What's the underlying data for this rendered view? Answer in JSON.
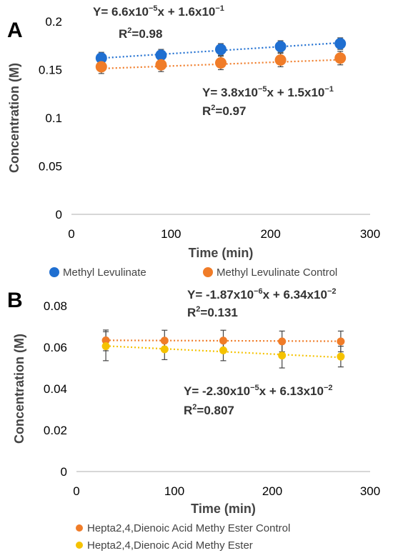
{
  "chart_data": [
    {
      "type": "scatter",
      "panel": "A",
      "xlabel": "Time (min)",
      "ylabel": "Concentration (M)",
      "xlim": [
        0,
        300
      ],
      "ylim": [
        0,
        0.2
      ],
      "x_ticks": [
        "0",
        "100",
        "200",
        "300"
      ],
      "y_ticks": [
        "0",
        "0.05",
        "0.1",
        "0.15",
        "0.2"
      ],
      "grid": false,
      "legend_position": "bottom",
      "series": [
        {
          "name": "Methyl Levulinate",
          "color": "#1f6fd1",
          "x": [
            30,
            90,
            150,
            210,
            270
          ],
          "y": [
            0.162,
            0.165,
            0.171,
            0.174,
            0.177
          ],
          "error": [
            0.006,
            0.006,
            0.006,
            0.006,
            0.006
          ],
          "trendline": {
            "slope": 6.6e-05,
            "intercept": 0.16
          },
          "equation": {
            "prefix": "Y= 6.6x10",
            "exp1": "−5",
            "mid": "x + 1.6x10",
            "exp2": "−1",
            "r2_label": "R",
            "r2_value": "=0.98"
          }
        },
        {
          "name": "Methyl Levulinate Control",
          "color": "#f07c28",
          "x": [
            30,
            90,
            150,
            210,
            270
          ],
          "y": [
            0.153,
            0.155,
            0.157,
            0.16,
            0.162
          ],
          "error": [
            0.007,
            0.007,
            0.007,
            0.007,
            0.007
          ],
          "trendline": {
            "slope": 3.8e-05,
            "intercept": 0.15
          },
          "equation": {
            "prefix": "Y= 3.8x10",
            "exp1": "−5",
            "mid": "x + 1.5x10",
            "exp2": "−1",
            "r2_label": "R",
            "r2_value": "=0.97"
          }
        }
      ]
    },
    {
      "type": "scatter",
      "panel": "B",
      "xlabel": "Time (min)",
      "ylabel": "Concentration (M)",
      "xlim": [
        0,
        300
      ],
      "ylim": [
        0,
        0.08
      ],
      "x_ticks": [
        "0",
        "100",
        "200",
        "300"
      ],
      "y_ticks": [
        "0",
        "0.02",
        "0.04",
        "0.06",
        "0.08"
      ],
      "grid": false,
      "legend_position": "bottom",
      "series": [
        {
          "name": "Hepta2,4,Dienoic Acid Methy Ester Control",
          "color": "#f07c28",
          "x": [
            30,
            90,
            150,
            210,
            270
          ],
          "y": [
            0.0633,
            0.0632,
            0.0632,
            0.0628,
            0.0628
          ],
          "error": [
            0.005,
            0.005,
            0.005,
            0.005,
            0.005
          ],
          "trendline": {
            "slope": -1.87e-06,
            "intercept": 0.0634
          },
          "equation": {
            "prefix": "Y= -1.87x10",
            "exp1": "−6",
            "mid": "x + 6.34x10",
            "exp2": "−2",
            "r2_label": "R",
            "r2_value": "=0.131"
          }
        },
        {
          "name": "Hepta2,4,Dienoic Acid Methy Ester",
          "color": "#f5c200",
          "x": [
            30,
            90,
            150,
            210,
            270
          ],
          "y": [
            0.0605,
            0.059,
            0.0585,
            0.056,
            0.0555
          ],
          "error": [
            0.007,
            0.005,
            0.005,
            0.006,
            0.005
          ],
          "trendline": {
            "slope": -2.3e-05,
            "intercept": 0.0613
          },
          "equation": {
            "prefix": "Y= -2.30x10",
            "exp1": "−5",
            "mid": "x + 6.13x10",
            "exp2": "−2",
            "r2_label": "R",
            "r2_value": "=0.807"
          }
        }
      ]
    }
  ]
}
